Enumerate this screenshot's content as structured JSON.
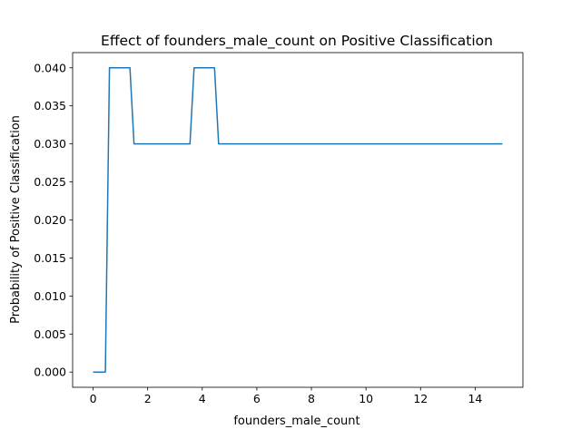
{
  "chart_data": {
    "type": "line",
    "title": "Effect of founders_male_count on Positive Classification",
    "xlabel": "founders_male_count",
    "ylabel": "Probability of Positive Classification",
    "xlim": [
      -0.75,
      15.75
    ],
    "ylim": [
      -0.002,
      0.042
    ],
    "x_ticks": [
      0,
      2,
      4,
      6,
      8,
      10,
      12,
      14
    ],
    "x_tick_labels": [
      "0",
      "2",
      "4",
      "6",
      "8",
      "10",
      "12",
      "14"
    ],
    "y_ticks": [
      0.0,
      0.005,
      0.01,
      0.015,
      0.02,
      0.025,
      0.03,
      0.035,
      0.04
    ],
    "y_tick_labels": [
      "0.000",
      "0.005",
      "0.010",
      "0.015",
      "0.020",
      "0.025",
      "0.030",
      "0.035",
      "0.040"
    ],
    "grid": false,
    "series": [
      {
        "color": "#1f77b4",
        "x": [
          0,
          0.45,
          0.6,
          1.35,
          1.5,
          3.55,
          3.7,
          4.45,
          4.6,
          15
        ],
        "y": [
          0.0,
          0.0,
          0.04,
          0.04,
          0.03,
          0.03,
          0.04,
          0.04,
          0.03,
          0.03
        ]
      }
    ]
  }
}
